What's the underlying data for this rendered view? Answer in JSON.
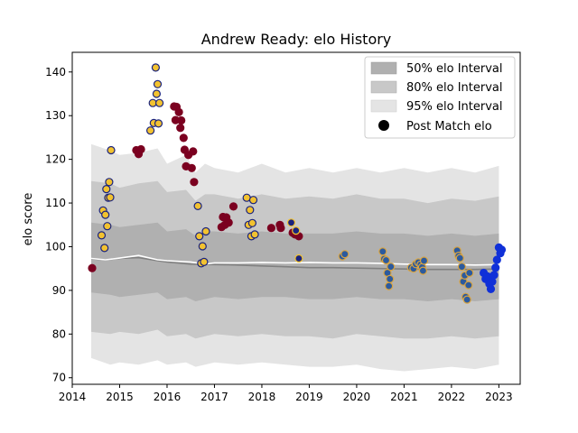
{
  "chart_data": {
    "type": "scatter",
    "title": "Andrew Ready: elo History",
    "xlabel": "",
    "ylabel": "elo score",
    "xlim": [
      2014.0,
      2023.45
    ],
    "ylim": [
      68.5,
      144.5
    ],
    "xticks": [
      "2014",
      "2015",
      "2016",
      "2017",
      "2018",
      "2019",
      "2020",
      "2021",
      "2022",
      "2023"
    ],
    "yticks": [
      "70",
      "80",
      "90",
      "100",
      "110",
      "120",
      "130",
      "140"
    ],
    "legend_position": "top-right",
    "legend": {
      "band50": "50% elo Interval",
      "band80": "80% elo Interval",
      "band95": "95% elo Interval",
      "points": "Post Match elo"
    },
    "colors": {
      "band50": "#b0b0b0",
      "band80": "#c8c8c8",
      "band95": "#e4e4e4",
      "median_line": "#808080",
      "mean_line": "#ffffff",
      "navy_gold_fill": "#1a237e",
      "navy_gold_edge": "#f2c230",
      "gold_navy_fill": "#f2c230",
      "gold_navy_edge": "#1a237e",
      "maroon": "#7b0020",
      "blue_gold_fill": "#2c5a9e",
      "blue_gold_edge": "#d9a441",
      "bright_blue": "#1030d8"
    },
    "bands": {
      "x": [
        2014.4,
        2014.8,
        2015.0,
        2015.4,
        2015.8,
        2016.0,
        2016.4,
        2016.6,
        2016.8,
        2017.0,
        2017.5,
        2018.0,
        2018.5,
        2019.0,
        2019.5,
        2020.0,
        2020.5,
        2021.0,
        2021.5,
        2022.0,
        2022.5,
        2023.0
      ],
      "p95_hi": [
        123.5,
        122,
        121,
        121.5,
        122.5,
        119,
        121,
        117,
        119,
        118,
        117,
        119,
        117,
        118,
        117,
        118,
        117,
        118,
        117,
        118,
        117,
        118.5
      ],
      "p80_hi": [
        115,
        114.5,
        113.5,
        114.5,
        115,
        112.5,
        113,
        110.5,
        112,
        112,
        111,
        112,
        111,
        111.5,
        111,
        112,
        111,
        111,
        110,
        111,
        110.5,
        111.5
      ],
      "p50_hi": [
        105.5,
        105,
        104.5,
        105,
        105.5,
        103.5,
        104,
        102.5,
        103.5,
        103.5,
        103,
        103.5,
        103,
        103,
        103,
        103.5,
        103,
        103,
        102.5,
        103,
        102.5,
        103
      ],
      "p50_lo": [
        89.5,
        89,
        88.5,
        89,
        89.5,
        88,
        88.5,
        87.5,
        88,
        88.5,
        88,
        88.5,
        88.5,
        88,
        88,
        88.5,
        88,
        88,
        87.5,
        88,
        87.5,
        88
      ],
      "p80_lo": [
        80.5,
        80,
        80.5,
        80,
        81,
        79.5,
        80,
        79,
        79.5,
        80,
        79.5,
        80,
        79.5,
        79.5,
        79,
        80,
        79.5,
        79,
        79,
        79.5,
        79,
        79.5
      ],
      "p95_lo": [
        74.5,
        73,
        73.5,
        73,
        74,
        73,
        73.5,
        72.5,
        73,
        73.5,
        73,
        73.5,
        73,
        72.5,
        72.5,
        73,
        72,
        71.5,
        72,
        72.5,
        72,
        73
      ]
    },
    "lines": {
      "median": {
        "x": [
          2014.4,
          2014.7,
          2015.0,
          2015.4,
          2015.8,
          2016.0,
          2016.5,
          2017.0,
          2017.5,
          2018.0,
          2018.5,
          2019.0,
          2019.5,
          2020.0,
          2020.5,
          2021.0,
          2021.5,
          2022.0,
          2022.5,
          2023.0
        ],
        "y": [
          97.2,
          97.0,
          97.3,
          97.5,
          96.8,
          96.5,
          96.0,
          95.9,
          95.8,
          95.6,
          95.4,
          95.2,
          95.2,
          95.1,
          95.0,
          94.9,
          94.8,
          94.8,
          94.8,
          94.9
        ]
      },
      "mean": {
        "x": [
          2014.4,
          2014.7,
          2015.0,
          2015.4,
          2015.8,
          2016.0,
          2016.5,
          2016.8,
          2017.0,
          2017.5,
          2018.0,
          2018.5,
          2019.0,
          2019.5,
          2020.0,
          2020.5,
          2021.0,
          2021.5,
          2022.0,
          2022.5,
          2023.0
        ],
        "y": [
          97.3,
          97.0,
          97.4,
          98.0,
          97.0,
          96.8,
          96.5,
          96.0,
          96.3,
          96.3,
          96.4,
          96.3,
          96.4,
          96.3,
          96.3,
          96.2,
          96.0,
          95.9,
          95.9,
          95.8,
          95.9
        ]
      }
    },
    "series": [
      {
        "fill": "maroon",
        "edge": "maroon",
        "points": [
          [
            2014.42,
            95.1
          ],
          [
            2015.35,
            122.1
          ],
          [
            2015.4,
            121.2
          ],
          [
            2015.45,
            122.3
          ],
          [
            2016.15,
            132.1
          ],
          [
            2016.2,
            132.0
          ],
          [
            2016.25,
            130.8
          ],
          [
            2016.3,
            128.9
          ],
          [
            2016.18,
            129.0
          ],
          [
            2016.28,
            127.2
          ],
          [
            2016.35,
            124.9
          ],
          [
            2016.37,
            122.2
          ],
          [
            2016.4,
            118.4
          ],
          [
            2016.45,
            121.0
          ],
          [
            2016.52,
            118.0
          ],
          [
            2016.55,
            121.8
          ],
          [
            2016.57,
            114.8
          ],
          [
            2017.15,
            104.5
          ],
          [
            2017.18,
            106.8
          ],
          [
            2017.22,
            105.0
          ],
          [
            2017.25,
            106.7
          ],
          [
            2017.3,
            105.5
          ],
          [
            2017.4,
            109.2
          ],
          [
            2018.2,
            104.3
          ],
          [
            2018.38,
            105.0
          ],
          [
            2018.4,
            104.3
          ],
          [
            2018.65,
            103.2
          ],
          [
            2018.7,
            102.8
          ],
          [
            2018.78,
            102.4
          ]
        ]
      },
      {
        "fill": "navy_gold_fill",
        "edge": "navy_gold_edge",
        "points": [
          [
            2018.62,
            105.5
          ],
          [
            2018.72,
            103.7
          ],
          [
            2018.78,
            97.3
          ]
        ]
      },
      {
        "fill": "gold_navy_fill",
        "edge": "gold_navy_edge",
        "points": [
          [
            2014.62,
            102.6
          ],
          [
            2014.65,
            108.3
          ],
          [
            2014.68,
            99.7
          ],
          [
            2014.7,
            107.3
          ],
          [
            2014.72,
            113.2
          ],
          [
            2014.76,
            111.2
          ],
          [
            2014.78,
            114.8
          ],
          [
            2014.8,
            111.3
          ],
          [
            2014.74,
            104.7
          ],
          [
            2014.82,
            122.1
          ],
          [
            2015.65,
            126.6
          ],
          [
            2015.7,
            132.9
          ],
          [
            2015.72,
            128.3
          ],
          [
            2015.76,
            141.0
          ],
          [
            2015.78,
            135.0
          ],
          [
            2015.8,
            137.2
          ],
          [
            2015.82,
            128.2
          ],
          [
            2015.84,
            132.9
          ],
          [
            2016.65,
            109.3
          ],
          [
            2016.68,
            102.4
          ],
          [
            2016.72,
            96.2
          ],
          [
            2016.75,
            100.1
          ],
          [
            2016.78,
            96.5
          ],
          [
            2016.82,
            103.5
          ],
          [
            2017.68,
            111.2
          ],
          [
            2017.72,
            105.0
          ],
          [
            2017.75,
            108.4
          ],
          [
            2017.78,
            102.4
          ],
          [
            2017.8,
            105.4
          ],
          [
            2017.82,
            110.7
          ],
          [
            2017.85,
            102.8
          ]
        ]
      },
      {
        "fill": "blue_gold_fill",
        "edge": "blue_gold_edge",
        "points": [
          [
            2019.7,
            97.8
          ],
          [
            2019.75,
            98.3
          ],
          [
            2020.55,
            98.9
          ],
          [
            2020.58,
            97.2
          ],
          [
            2020.62,
            96.9
          ],
          [
            2020.65,
            94.0
          ],
          [
            2020.68,
            91.0
          ],
          [
            2020.7,
            92.6
          ],
          [
            2020.72,
            95.4
          ],
          [
            2021.15,
            95.2
          ],
          [
            2021.2,
            95.0
          ],
          [
            2021.25,
            96.0
          ],
          [
            2021.3,
            96.4
          ],
          [
            2021.35,
            95.9
          ],
          [
            2021.38,
            95.3
          ],
          [
            2021.4,
            94.5
          ],
          [
            2021.42,
            96.8
          ],
          [
            2022.12,
            99.1
          ],
          [
            2022.15,
            97.9
          ],
          [
            2022.18,
            97.4
          ],
          [
            2022.22,
            95.4
          ],
          [
            2022.25,
            92.0
          ],
          [
            2022.28,
            93.4
          ],
          [
            2022.3,
            88.5
          ],
          [
            2022.33,
            87.9
          ],
          [
            2022.36,
            91.2
          ],
          [
            2022.38,
            94.0
          ]
        ]
      },
      {
        "fill": "bright_blue",
        "edge": "bright_blue",
        "points": [
          [
            2022.68,
            94.0
          ],
          [
            2022.72,
            92.6
          ],
          [
            2022.76,
            93.2
          ],
          [
            2022.8,
            91.5
          ],
          [
            2022.83,
            90.3
          ],
          [
            2022.86,
            92.0
          ],
          [
            2022.9,
            93.5
          ],
          [
            2022.93,
            95.2
          ],
          [
            2022.96,
            97.0
          ],
          [
            2023.0,
            99.8
          ],
          [
            2023.03,
            98.5
          ],
          [
            2023.06,
            99.3
          ]
        ]
      }
    ]
  }
}
